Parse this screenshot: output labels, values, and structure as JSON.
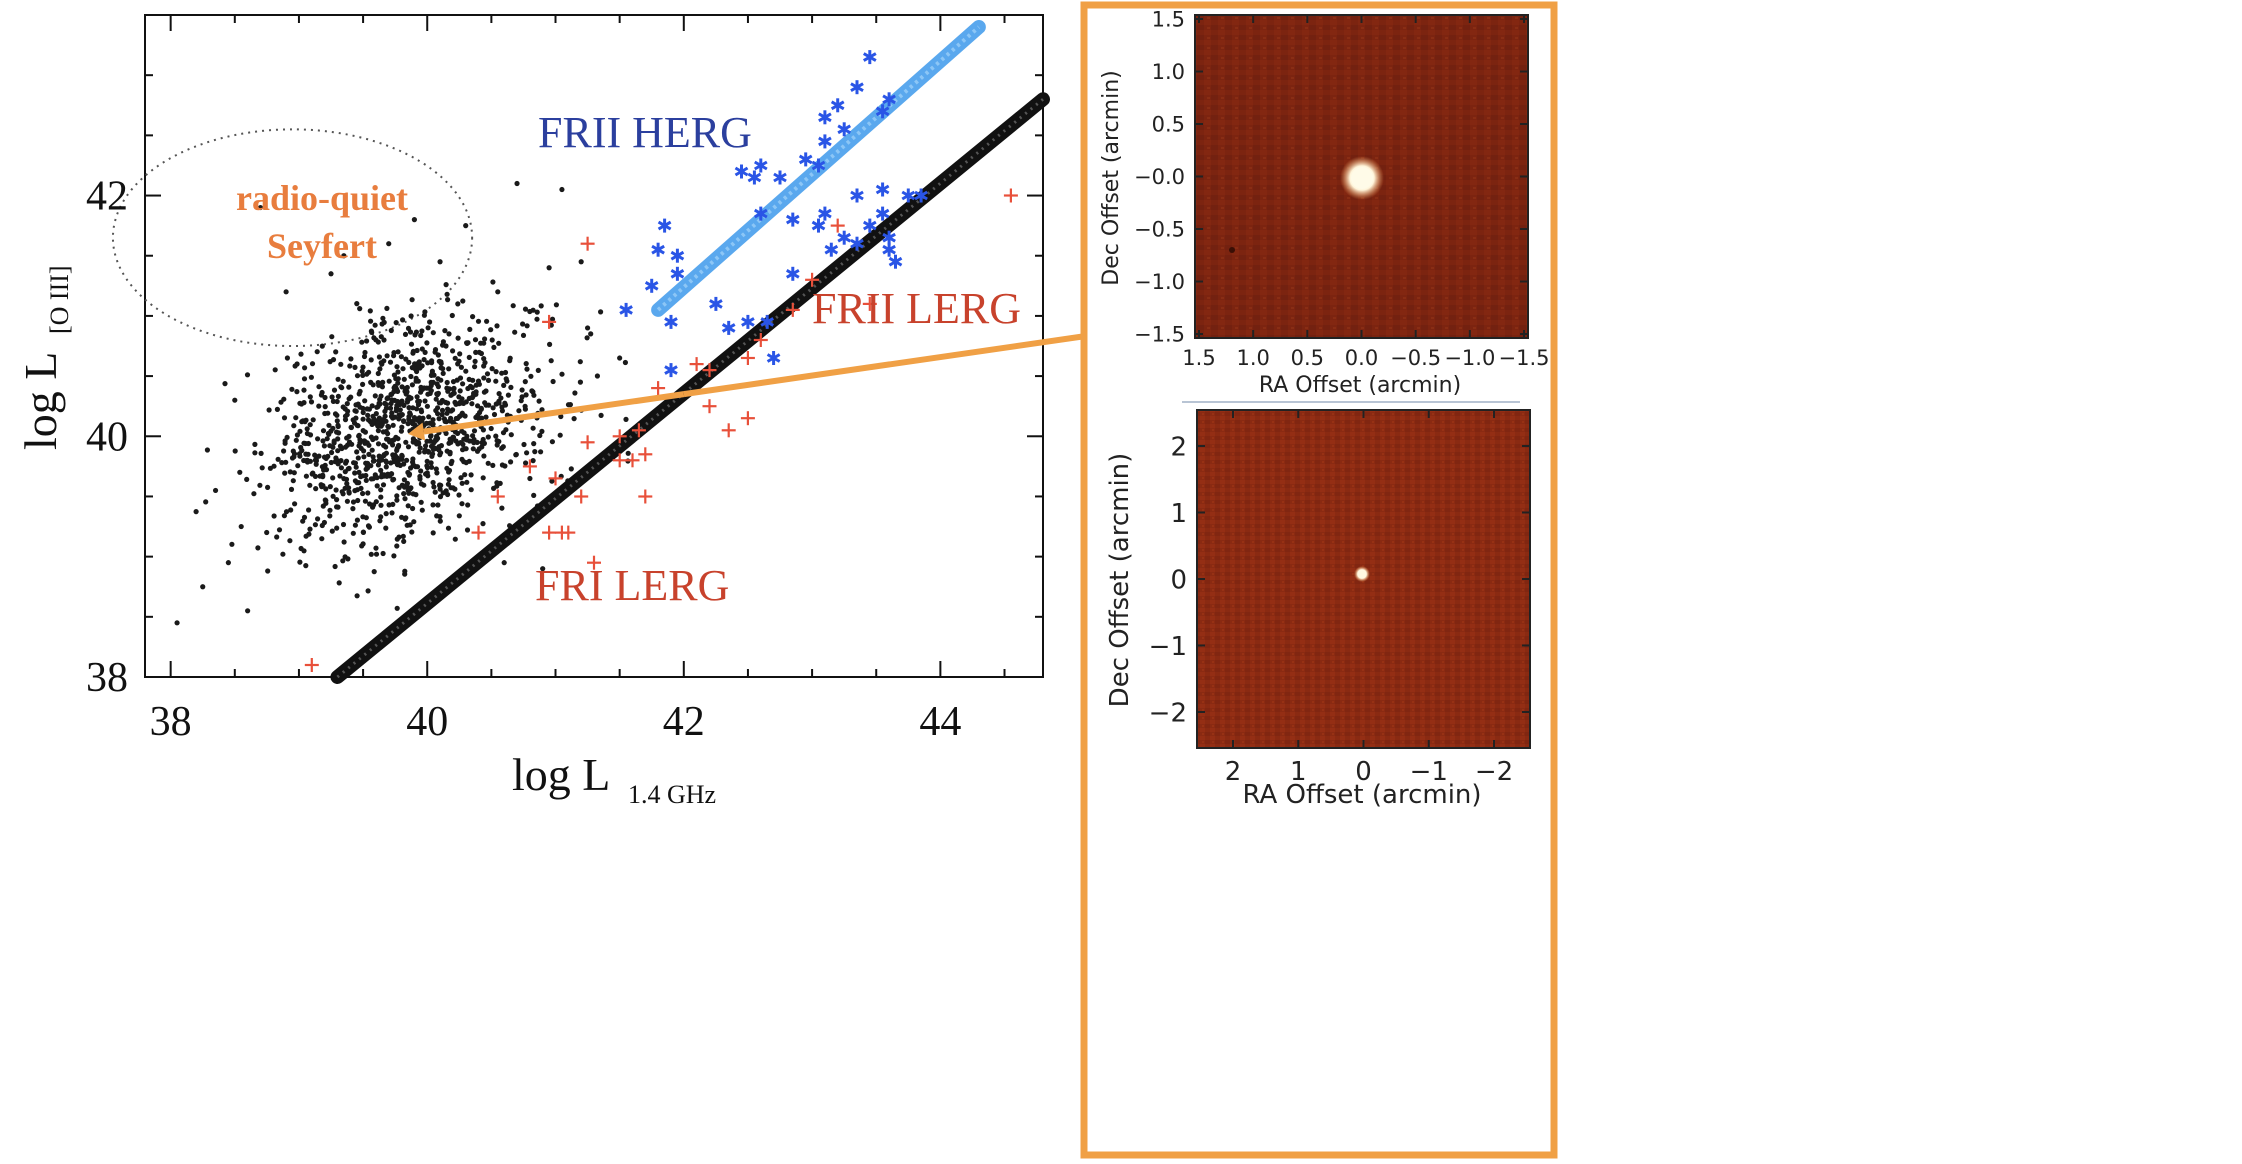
{
  "chart_data": [
    {
      "type": "scatter",
      "xlabel": "log L",
      "xlabel_sub": "1.4 GHz",
      "ylabel": "log L",
      "ylabel_sub": "[O III]",
      "xlim": [
        37.8,
        44.8
      ],
      "ylim": [
        38.0,
        43.5
      ],
      "xticks": [
        38,
        40,
        42,
        44
      ],
      "yticks": [
        38,
        40,
        42
      ],
      "xtick_labels": [
        "38",
        "40",
        "42",
        "44"
      ],
      "ytick_labels": [
        "38",
        "40",
        "42"
      ],
      "annotations": {
        "fri_lerg": "FRI LERG",
        "frii_lerg": "FRII LERG",
        "frii_herg": "FRII HERG",
        "radio_quiet_line1": "radio-quiet",
        "radio_quiet_line2": "Seyfert"
      },
      "radio_quiet_region": {
        "center": [
          38.95,
          41.65
        ],
        "radius_x": 1.4,
        "radius_y": 0.9
      },
      "colors": {
        "seyfert": "#1a1a1a",
        "frii_herg": "#2a55e6",
        "lerg": "#e8503a",
        "herg_line": "#5aa8ee",
        "lerg_line": "#111111",
        "label_red": "#c8422c",
        "label_blue": "#2b3f9e",
        "label_orange": "#e87d3e",
        "arrow": "#f0a045"
      },
      "series": [
        {
          "name": "radio-quiet Seyfert",
          "marker": "dot",
          "generator": {
            "n": 1150,
            "center": [
              39.85,
              40.05
            ],
            "spread": [
              0.55,
              0.45
            ],
            "seed": 7
          },
          "outliers": [
            {
              "x": 38.05,
              "y": 38.45
            },
            {
              "x": 38.25,
              "y": 38.75
            },
            {
              "x": 38.45,
              "y": 38.95
            },
            {
              "x": 38.6,
              "y": 38.55
            },
            {
              "x": 38.55,
              "y": 39.25
            },
            {
              "x": 38.35,
              "y": 39.55
            },
            {
              "x": 38.5,
              "y": 40.3
            },
            {
              "x": 38.9,
              "y": 41.2
            },
            {
              "x": 39.35,
              "y": 41.5
            },
            {
              "x": 39.9,
              "y": 41.8
            },
            {
              "x": 40.3,
              "y": 41.75
            },
            {
              "x": 40.7,
              "y": 42.1
            },
            {
              "x": 41.05,
              "y": 42.05
            },
            {
              "x": 40.95,
              "y": 41.4
            },
            {
              "x": 41.2,
              "y": 41.45
            },
            {
              "x": 39.7,
              "y": 41.6
            },
            {
              "x": 38.7,
              "y": 41.9
            },
            {
              "x": 40.55,
              "y": 41.2
            },
            {
              "x": 41.25,
              "y": 40.9
            },
            {
              "x": 41.5,
              "y": 40.65
            },
            {
              "x": 40.9,
              "y": 38.9
            },
            {
              "x": 40.6,
              "y": 38.95
            },
            {
              "x": 39.25,
              "y": 41.35
            },
            {
              "x": 40.1,
              "y": 41.45
            }
          ]
        },
        {
          "name": "FRII HERG",
          "marker": "asterisk",
          "points": [
            {
              "x": 41.85,
              "y": 41.75
            },
            {
              "x": 41.8,
              "y": 41.55
            },
            {
              "x": 41.95,
              "y": 41.5
            },
            {
              "x": 41.75,
              "y": 41.25
            },
            {
              "x": 41.95,
              "y": 41.35
            },
            {
              "x": 41.55,
              "y": 41.05
            },
            {
              "x": 41.9,
              "y": 40.95
            },
            {
              "x": 41.9,
              "y": 40.55
            },
            {
              "x": 42.25,
              "y": 41.1
            },
            {
              "x": 42.5,
              "y": 40.95
            },
            {
              "x": 42.35,
              "y": 40.9
            },
            {
              "x": 42.7,
              "y": 40.65
            },
            {
              "x": 42.65,
              "y": 40.95
            },
            {
              "x": 42.85,
              "y": 41.35
            },
            {
              "x": 42.6,
              "y": 41.85
            },
            {
              "x": 42.45,
              "y": 42.2
            },
            {
              "x": 42.55,
              "y": 42.15
            },
            {
              "x": 42.6,
              "y": 42.25
            },
            {
              "x": 42.75,
              "y": 42.15
            },
            {
              "x": 42.95,
              "y": 42.3
            },
            {
              "x": 43.05,
              "y": 42.25
            },
            {
              "x": 43.1,
              "y": 42.45
            },
            {
              "x": 43.1,
              "y": 42.65
            },
            {
              "x": 43.2,
              "y": 42.75
            },
            {
              "x": 43.25,
              "y": 42.55
            },
            {
              "x": 43.35,
              "y": 42.9
            },
            {
              "x": 43.6,
              "y": 42.8
            },
            {
              "x": 43.45,
              "y": 43.15
            },
            {
              "x": 43.55,
              "y": 42.7
            },
            {
              "x": 43.1,
              "y": 41.85
            },
            {
              "x": 43.05,
              "y": 41.75
            },
            {
              "x": 43.25,
              "y": 41.65
            },
            {
              "x": 43.35,
              "y": 41.6
            },
            {
              "x": 43.45,
              "y": 41.75
            },
            {
              "x": 43.6,
              "y": 41.65
            },
            {
              "x": 43.55,
              "y": 42.05
            },
            {
              "x": 43.75,
              "y": 42.0
            },
            {
              "x": 43.65,
              "y": 41.45
            },
            {
              "x": 43.55,
              "y": 41.85
            },
            {
              "x": 43.85,
              "y": 42.0
            },
            {
              "x": 43.35,
              "y": 42.0
            },
            {
              "x": 42.85,
              "y": 41.8
            },
            {
              "x": 43.15,
              "y": 41.55
            },
            {
              "x": 43.6,
              "y": 41.55
            }
          ]
        },
        {
          "name": "LERG",
          "marker": "plus",
          "points": [
            {
              "x": 39.1,
              "y": 38.1
            },
            {
              "x": 40.4,
              "y": 39.2
            },
            {
              "x": 40.55,
              "y": 39.5
            },
            {
              "x": 40.8,
              "y": 39.75
            },
            {
              "x": 40.95,
              "y": 39.2
            },
            {
              "x": 41.05,
              "y": 39.2
            },
            {
              "x": 41.1,
              "y": 39.2
            },
            {
              "x": 41.0,
              "y": 39.65
            },
            {
              "x": 41.25,
              "y": 39.95
            },
            {
              "x": 41.3,
              "y": 38.95
            },
            {
              "x": 41.2,
              "y": 39.5
            },
            {
              "x": 40.95,
              "y": 40.95
            },
            {
              "x": 41.25,
              "y": 41.6
            },
            {
              "x": 41.5,
              "y": 40.0
            },
            {
              "x": 41.5,
              "y": 39.8
            },
            {
              "x": 41.6,
              "y": 39.8
            },
            {
              "x": 41.7,
              "y": 39.85
            },
            {
              "x": 41.7,
              "y": 39.5
            },
            {
              "x": 41.65,
              "y": 40.05
            },
            {
              "x": 41.8,
              "y": 40.4
            },
            {
              "x": 42.1,
              "y": 40.6
            },
            {
              "x": 42.2,
              "y": 40.25
            },
            {
              "x": 42.35,
              "y": 40.05
            },
            {
              "x": 42.5,
              "y": 40.15
            },
            {
              "x": 42.5,
              "y": 40.65
            },
            {
              "x": 42.6,
              "y": 40.8
            },
            {
              "x": 42.85,
              "y": 41.05
            },
            {
              "x": 43.0,
              "y": 41.3
            },
            {
              "x": 43.2,
              "y": 41.75
            },
            {
              "x": 43.45,
              "y": 41.1
            },
            {
              "x": 44.55,
              "y": 42.0
            },
            {
              "x": 42.2,
              "y": 40.55
            }
          ]
        }
      ],
      "fit_lines": [
        {
          "name": "FRII HERG line",
          "x": [
            41.8,
            44.3
          ],
          "y": [
            41.05,
            43.4
          ]
        },
        {
          "name": "LERG line",
          "x": [
            39.3,
            44.8
          ],
          "y": [
            38.0,
            42.8
          ]
        }
      ],
      "arrow": {
        "from": [
          42.0,
          40.35
        ],
        "to": [
          39.85,
          40.02
        ]
      }
    },
    {
      "type": "heatmap",
      "title": "",
      "xlabel": "RA Offset (arcmin)",
      "ylabel": "Dec Offset (arcmin)",
      "xlim": [
        1.5,
        -1.5
      ],
      "ylim": [
        -1.5,
        1.5
      ],
      "xtick_labels": [
        "1.5",
        "1.0",
        "0.5",
        "0.0",
        "−0.5",
        "−1.0",
        "−1.5"
      ],
      "ytick_labels": [
        "1.5",
        "1.0",
        "0.5",
        "−0.0",
        "−0.5",
        "−1.0",
        "−1.5"
      ],
      "source": {
        "x": 0.0,
        "y": 0.0,
        "radius_arcmin": 0.1
      }
    },
    {
      "type": "heatmap",
      "title": "",
      "xlabel": "RA Offset (arcmin)",
      "ylabel": "Dec Offset (arcmin)",
      "xlim": [
        2.6,
        -2.6
      ],
      "ylim": [
        -2.6,
        2.6
      ],
      "xtick_labels": [
        "2",
        "1",
        "0",
        "−1",
        "−2"
      ],
      "ytick_labels": [
        "2",
        "1",
        "0",
        "−1",
        "−2"
      ],
      "source": {
        "x": 0.0,
        "y": 0.0,
        "radius_arcmin": 0.06
      }
    }
  ]
}
